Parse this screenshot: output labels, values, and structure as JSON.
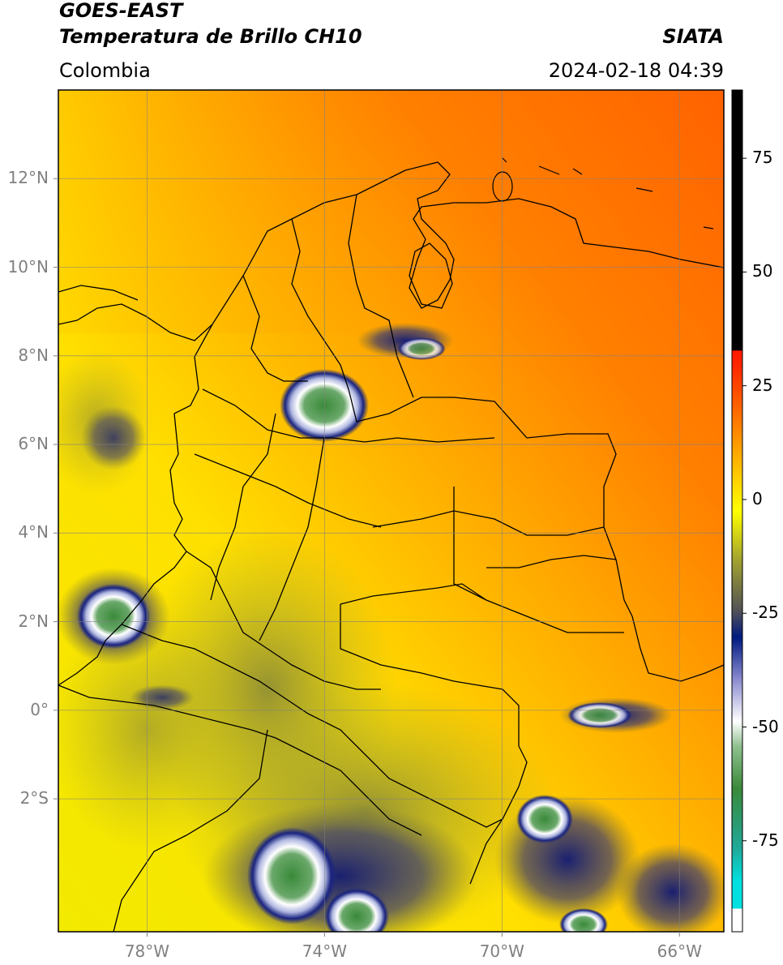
{
  "header": {
    "satellite": "GOES-EAST",
    "product": "Temperatura de Brillo CH10",
    "region": "Colombia",
    "agency": "SIATA",
    "datetime": "2024-02-18 04:39"
  },
  "map": {
    "lat_ticks": [
      {
        "lat": 12,
        "label": "12°N"
      },
      {
        "lat": 10,
        "label": "10°N"
      },
      {
        "lat": 8,
        "label": "8°N"
      },
      {
        "lat": 6,
        "label": "6°N"
      },
      {
        "lat": 4,
        "label": "4°N"
      },
      {
        "lat": 2,
        "label": "2°N"
      },
      {
        "lat": 0,
        "label": "0°"
      },
      {
        "lat": -2,
        "label": "2°S"
      }
    ],
    "lon_ticks": [
      {
        "lon": -78,
        "label": "78°W"
      },
      {
        "lon": -74,
        "label": "74°W"
      },
      {
        "lon": -70,
        "label": "70°W"
      },
      {
        "lon": -66,
        "label": "66°W"
      }
    ],
    "lon_range": [
      -80,
      -65
    ],
    "lat_range": [
      -5,
      14
    ],
    "grid": true
  },
  "colorbar": {
    "ticks": [
      {
        "value": 75,
        "label": "75"
      },
      {
        "value": 50,
        "label": "50"
      },
      {
        "value": 25,
        "label": "25"
      },
      {
        "value": 0,
        "label": "0"
      },
      {
        "value": -25,
        "label": "-25"
      },
      {
        "value": -50,
        "label": "-50"
      },
      {
        "value": -75,
        "label": "-75"
      }
    ],
    "range": [
      -95,
      90
    ],
    "colors": {
      "black": "#000000",
      "red": "#ff1a00",
      "orange": "#ff6a00",
      "yellow": "#ffff00",
      "olive": "#8c8c30",
      "navy": "#001a80",
      "white": "#ffffff",
      "green": "#3a8a3a",
      "cyan": "#00e0e0"
    }
  }
}
